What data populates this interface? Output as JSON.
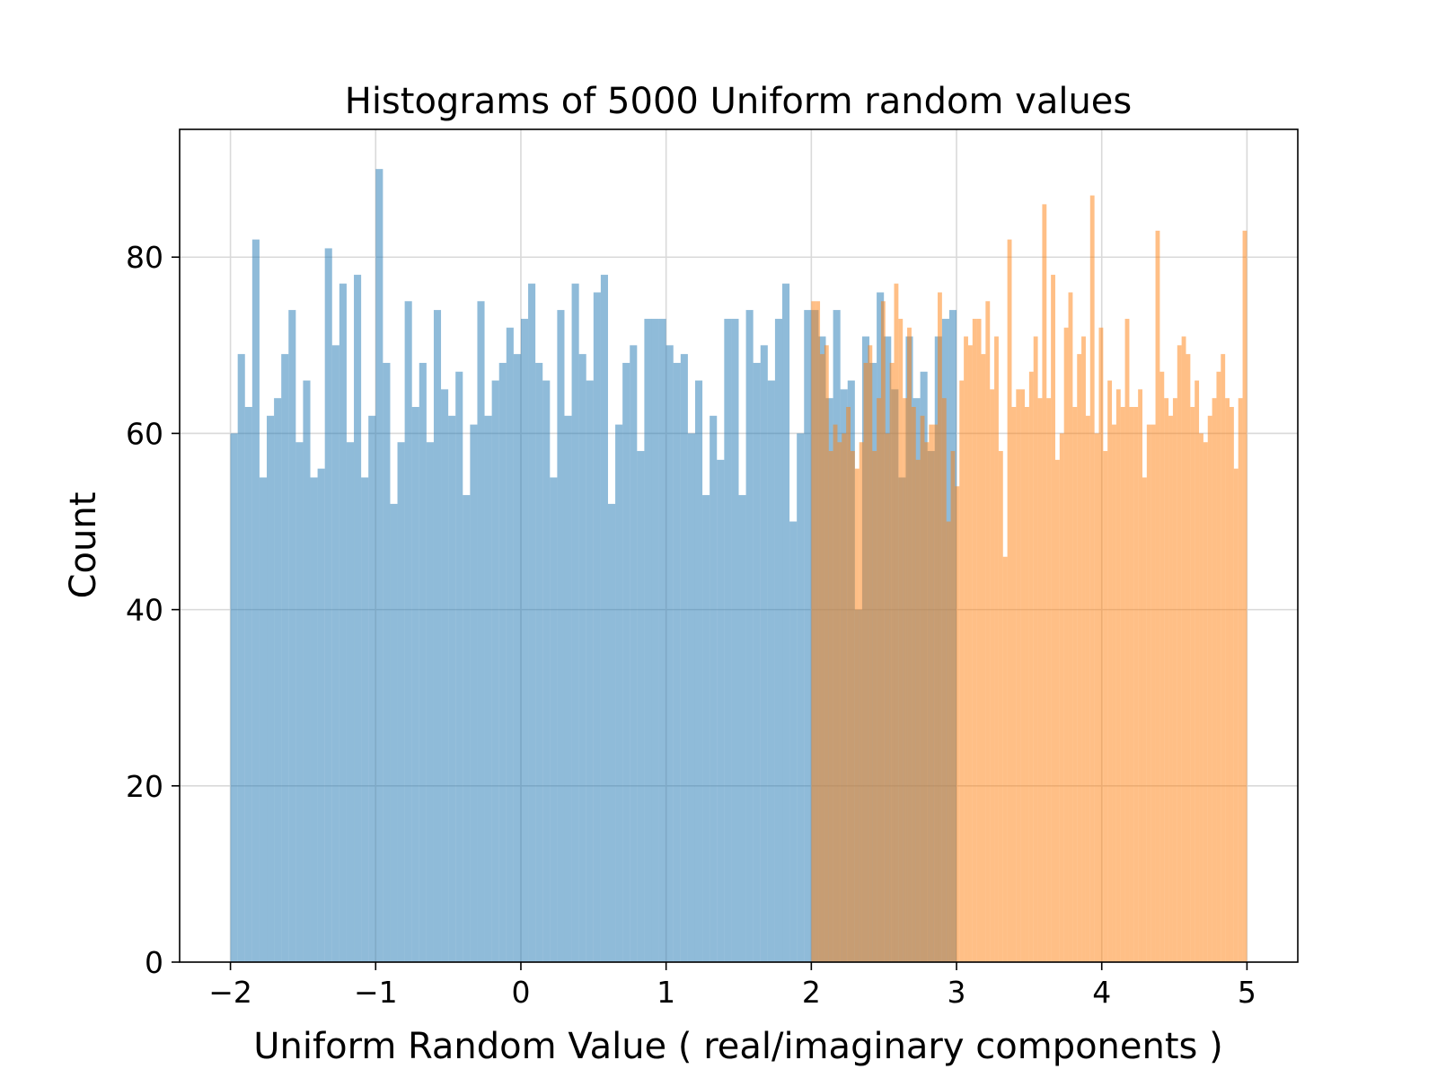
{
  "chart_data": {
    "type": "bar",
    "subtype": "histogram-overlay",
    "title": "Histograms of 5000 Uniform random values",
    "xlabel": "Uniform Random Value ( real/imaginary components )",
    "ylabel": "Count",
    "xlim": [
      -2.35,
      5.35
    ],
    "ylim": [
      0,
      94.5
    ],
    "xticks": [
      -2,
      -1,
      0,
      1,
      2,
      3,
      4,
      5
    ],
    "xtick_labels": [
      "−2",
      "−1",
      "0",
      "1",
      "2",
      "3",
      "4",
      "5"
    ],
    "yticks": [
      0,
      20,
      40,
      60,
      80
    ],
    "ytick_labels": [
      "0",
      "20",
      "40",
      "60",
      "80"
    ],
    "grid": true,
    "legend": "none",
    "alpha": 0.5,
    "series": [
      {
        "color": "#1f77b4",
        "range": [
          -2,
          3
        ],
        "bins": 100,
        "values": [
          60,
          69,
          63,
          82,
          55,
          62,
          64,
          69,
          74,
          59,
          66,
          55,
          56,
          81,
          70,
          77,
          59,
          78,
          55,
          62,
          90,
          68,
          52,
          59,
          75,
          63,
          68,
          59,
          74,
          65,
          62,
          67,
          53,
          61,
          75,
          62,
          66,
          68,
          72,
          69,
          73,
          77,
          68,
          66,
          55,
          74,
          62,
          77,
          69,
          66,
          76,
          78,
          52,
          61,
          68,
          70,
          58,
          73,
          73,
          73,
          70,
          68,
          69,
          60,
          66,
          53,
          62,
          57,
          73,
          73,
          53,
          74,
          68,
          70,
          66,
          73,
          77,
          50,
          60,
          74,
          74,
          71,
          64,
          74,
          65,
          66,
          40,
          71,
          68,
          76,
          71,
          65,
          55,
          71,
          64,
          67,
          58,
          71,
          73,
          74
        ]
      },
      {
        "color": "#ff7f0e",
        "range": [
          2,
          5
        ],
        "bins": 100,
        "values": [
          75,
          75,
          69,
          70,
          58,
          61,
          59,
          60,
          63,
          58,
          56,
          59,
          68,
          70,
          58,
          64,
          75,
          60,
          68,
          77,
          73,
          64,
          72,
          63,
          57,
          62,
          59,
          61,
          61,
          76,
          64,
          50,
          58,
          54,
          66,
          71,
          70,
          73,
          73,
          69,
          75,
          65,
          71,
          58,
          46,
          82,
          63,
          65,
          65,
          63,
          67,
          71,
          64,
          86,
          64,
          78,
          57,
          60,
          72,
          76,
          63,
          69,
          71,
          62,
          87,
          60,
          72,
          58,
          66,
          61,
          65,
          63,
          73,
          63,
          63,
          65,
          55,
          61,
          61,
          83,
          67,
          64,
          62,
          64,
          70,
          71,
          69,
          63,
          66,
          60,
          59,
          62,
          64,
          67,
          69,
          64,
          63,
          56,
          64,
          83
        ]
      }
    ]
  }
}
